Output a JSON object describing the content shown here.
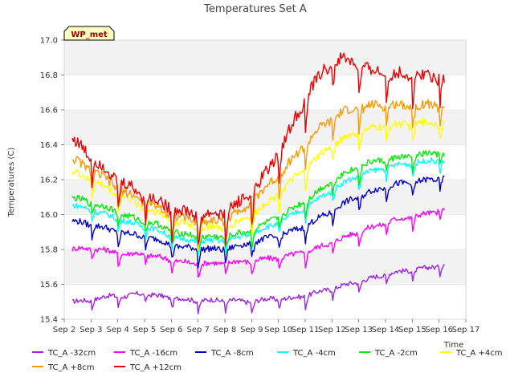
{
  "chart_data": {
    "type": "line",
    "title": "Temperatures Set A",
    "xlabel": "Time",
    "ylabel": "Temperatures (C)",
    "badge": "WP_met",
    "xlim": [
      2,
      17
    ],
    "ylim": [
      15.4,
      17.0
    ],
    "x_ticks": [
      2,
      3,
      4,
      5,
      6,
      7,
      8,
      9,
      10,
      11,
      12,
      13,
      14,
      15,
      16,
      17
    ],
    "x_tick_labels": [
      "Sep 2",
      "Sep 3",
      "Sep 4",
      "Sep 5",
      "Sep 6",
      "Sep 7",
      "Sep 8",
      "Sep 9",
      "Sep 10",
      "Sep 11",
      "Sep 12",
      "Sep 13",
      "Sep 14",
      "Sep 15",
      "Sep 16",
      "Sep 17"
    ],
    "y_ticks": [
      15.4,
      15.6,
      15.8,
      16.0,
      16.2,
      16.4,
      16.6,
      16.8,
      17.0
    ],
    "y_tick_labels": [
      "15.4",
      "15.6",
      "15.8",
      "16.0",
      "16.2",
      "16.4",
      "16.6",
      "16.8",
      "17.0"
    ],
    "x": [
      2.3,
      2.8,
      3.3,
      3.8,
      4.3,
      4.8,
      5.3,
      5.8,
      6.3,
      6.8,
      7.3,
      7.8,
      8.3,
      8.8,
      9.3,
      9.8,
      10.3,
      10.8,
      11.3,
      11.8,
      12.3,
      12.8,
      13.3,
      13.8,
      14.3,
      14.8,
      15.3,
      15.8,
      16.2
    ],
    "series": [
      {
        "name": "TC_A -32cm",
        "color": "#a020f0",
        "values": [
          15.49,
          15.5,
          15.51,
          15.53,
          15.52,
          15.54,
          15.53,
          15.52,
          15.51,
          15.5,
          15.5,
          15.5,
          15.5,
          15.49,
          15.5,
          15.51,
          15.51,
          15.52,
          15.54,
          15.56,
          15.58,
          15.6,
          15.62,
          15.64,
          15.66,
          15.67,
          15.68,
          15.69,
          15.71
        ]
      },
      {
        "name": "TC_A -16cm",
        "color": "#ff00ff",
        "values": [
          15.79,
          15.8,
          15.79,
          15.78,
          15.76,
          15.77,
          15.75,
          15.74,
          15.72,
          15.71,
          15.71,
          15.71,
          15.72,
          15.72,
          15.73,
          15.74,
          15.75,
          15.77,
          15.79,
          15.82,
          15.85,
          15.88,
          15.91,
          15.93,
          15.96,
          15.97,
          15.99,
          16.0,
          16.03
        ]
      },
      {
        "name": "TC_A -8cm",
        "color": "#0000cd",
        "values": [
          15.95,
          15.94,
          15.92,
          15.9,
          15.88,
          15.87,
          15.85,
          15.83,
          15.8,
          15.8,
          15.79,
          15.79,
          15.8,
          15.82,
          15.84,
          15.86,
          15.88,
          15.91,
          15.95,
          15.99,
          16.04,
          16.08,
          16.11,
          16.14,
          16.16,
          16.17,
          16.18,
          16.19,
          16.2
        ]
      },
      {
        "name": "TC_A -4cm",
        "color": "#00ffff",
        "values": [
          16.04,
          16.03,
          16.0,
          15.98,
          15.95,
          15.93,
          15.91,
          15.88,
          15.85,
          15.84,
          15.84,
          15.84,
          15.85,
          15.87,
          15.9,
          15.93,
          15.97,
          16.01,
          16.06,
          16.11,
          16.16,
          16.2,
          16.23,
          16.25,
          16.27,
          16.28,
          16.29,
          16.3,
          16.3
        ]
      },
      {
        "name": "TC_A -2cm",
        "color": "#00ee00",
        "values": [
          16.08,
          16.07,
          16.04,
          16.02,
          15.98,
          15.96,
          15.94,
          15.91,
          15.88,
          15.87,
          15.86,
          15.86,
          15.87,
          15.89,
          15.92,
          15.96,
          16.0,
          16.05,
          16.1,
          16.16,
          16.21,
          16.25,
          16.28,
          16.3,
          16.31,
          16.32,
          16.33,
          16.34,
          16.34
        ]
      },
      {
        "name": "TC_A +4cm",
        "color": "#ffff00",
        "values": [
          16.23,
          16.2,
          16.16,
          16.12,
          16.08,
          16.04,
          16.01,
          15.97,
          15.94,
          15.92,
          15.91,
          15.91,
          15.93,
          15.97,
          16.02,
          16.08,
          16.15,
          16.22,
          16.29,
          16.36,
          16.41,
          16.45,
          16.47,
          16.49,
          16.5,
          16.5,
          16.51,
          16.51,
          16.51
        ]
      },
      {
        "name": "TC_A +8cm",
        "color": "#ff9900",
        "values": [
          16.3,
          16.26,
          16.21,
          16.16,
          16.11,
          16.07,
          16.04,
          16.0,
          15.97,
          15.95,
          15.94,
          15.95,
          15.98,
          16.03,
          16.1,
          16.18,
          16.26,
          16.35,
          16.44,
          16.51,
          16.56,
          16.59,
          16.6,
          16.61,
          16.61,
          16.61,
          16.61,
          16.61,
          16.61
        ]
      },
      {
        "name": "TC_A +12cm",
        "color": "#ee0000",
        "values": [
          16.41,
          16.34,
          16.27,
          16.2,
          16.15,
          16.1,
          16.07,
          16.03,
          16.0,
          15.98,
          15.97,
          15.98,
          16.02,
          16.08,
          16.16,
          16.28,
          16.42,
          16.58,
          16.72,
          16.82,
          16.87,
          16.85,
          16.81,
          16.79,
          16.78,
          16.78,
          16.78,
          16.77,
          16.77
        ]
      }
    ]
  }
}
